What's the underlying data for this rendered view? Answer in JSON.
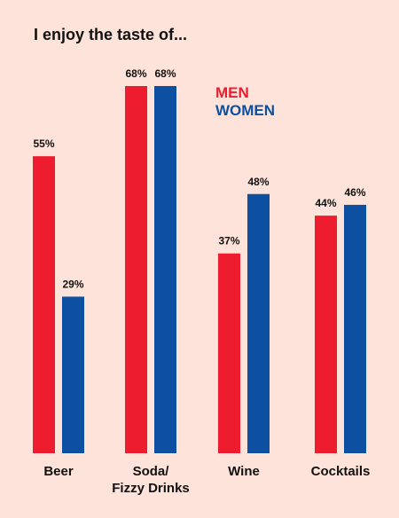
{
  "chart_data": {
    "type": "bar",
    "title": "I enjoy the taste of...",
    "categories": [
      [
        "Beer"
      ],
      [
        "Soda/",
        "Fizzy Drinks"
      ],
      [
        "Wine"
      ],
      [
        "Cocktails"
      ]
    ],
    "series": [
      {
        "name": "MEN",
        "color": "#ed1c2e",
        "values": [
          55,
          68,
          37,
          44
        ],
        "labels": [
          "55%",
          "68%",
          "37%",
          "44%"
        ]
      },
      {
        "name": "WOMEN",
        "color": "#0d4fa0",
        "values": [
          29,
          68,
          48,
          46
        ],
        "labels": [
          "29%",
          "68%",
          "48%",
          "46%"
        ]
      }
    ],
    "ylim": [
      0,
      68
    ],
    "grid": false,
    "legend_position": "top-right"
  }
}
